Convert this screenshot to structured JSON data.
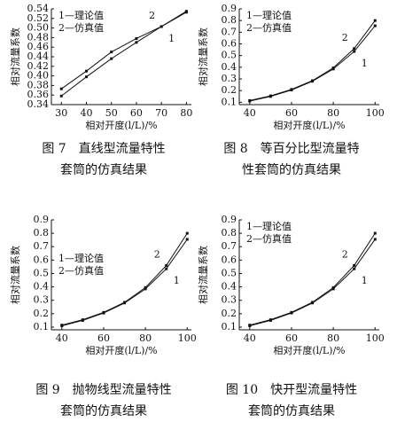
{
  "chart_data": [
    {
      "type": "line",
      "caption": [
        "图 7　直线型流量特性",
        "套筒的仿真结果"
      ],
      "xlabel": "相对开度(l/L)/%",
      "ylabel": "相对流量系数",
      "x": [
        30,
        40,
        50,
        60,
        70,
        80
      ],
      "xlim": [
        26,
        82
      ],
      "xticks": [
        30,
        40,
        50,
        60,
        70,
        80
      ],
      "ylim": [
        0.34,
        0.54
      ],
      "yticks": [
        0.34,
        0.36,
        0.38,
        {
          "value": 0.4,
          "label": "0.40"
        },
        0.42,
        0.44,
        0.46,
        0.48,
        {
          "value": 0.5,
          "label": "0.50"
        },
        0.52,
        0.54
      ],
      "legend": "upper left",
      "series": [
        {
          "name": "1—理论值",
          "label": "1",
          "color": "#111111",
          "values": [
            0.358,
            0.398,
            0.436,
            0.47,
            0.503,
            0.535
          ]
        },
        {
          "name": "2—仿真值",
          "label": "2",
          "color": "#111111",
          "values": [
            0.373,
            0.41,
            0.45,
            0.478,
            0.503,
            0.533
          ]
        }
      ]
    },
    {
      "type": "line",
      "caption": [
        "图 8　等百分比型流量特",
        "性套筒的仿真结果"
      ],
      "xlabel": "相对开度(l/L)/%",
      "ylabel": "相对流量系数",
      "x": [
        40,
        50,
        60,
        70,
        80,
        90,
        100
      ],
      "xlim": [
        35,
        102
      ],
      "xticks": [
        40,
        60,
        80,
        100
      ],
      "ylim": [
        0.08,
        0.9
      ],
      "yticks": [
        0.1,
        0.2,
        0.3,
        0.4,
        0.5,
        0.6,
        0.7,
        0.8,
        0.9
      ],
      "legend": "upper left",
      "series": [
        {
          "name": "1—理论值",
          "label": "1",
          "color": "#111111",
          "values": [
            0.11,
            0.15,
            0.205,
            0.28,
            0.385,
            0.535,
            0.755
          ]
        },
        {
          "name": "2—仿真值",
          "label": "2",
          "color": "#111111",
          "values": [
            0.115,
            0.155,
            0.21,
            0.285,
            0.395,
            0.56,
            0.8
          ]
        }
      ]
    },
    {
      "type": "line",
      "caption": [
        "图 9　抛物线型流量特性",
        "套筒的仿真结果"
      ],
      "xlabel": "相对开度(l/L)/%",
      "ylabel": "相对流量系数",
      "x": [
        40,
        50,
        60,
        70,
        80,
        90,
        100
      ],
      "xlim": [
        35,
        102
      ],
      "xticks": [
        40,
        60,
        80,
        100
      ],
      "ylim": [
        0.08,
        0.9
      ],
      "yticks": [
        0.1,
        0.2,
        0.3,
        0.4,
        0.5,
        0.6,
        0.7,
        0.8,
        0.9
      ],
      "legend": "center left",
      "series": [
        {
          "name": "1—理论值",
          "label": "1",
          "color": "#111111",
          "values": [
            0.11,
            0.15,
            0.205,
            0.28,
            0.385,
            0.535,
            0.755
          ]
        },
        {
          "name": "2—仿真值",
          "label": "2",
          "color": "#111111",
          "values": [
            0.115,
            0.155,
            0.21,
            0.285,
            0.395,
            0.56,
            0.8
          ]
        }
      ]
    },
    {
      "type": "line",
      "caption": [
        "图 10　快开型流量特性",
        "套筒的仿真结果"
      ],
      "xlabel": "相对开度(l/L)/%",
      "ylabel": "相对流量系数",
      "x": [
        40,
        50,
        60,
        70,
        80,
        90,
        100
      ],
      "xlim": [
        35,
        102
      ],
      "xticks": [
        40,
        60,
        80,
        100
      ],
      "ylim": [
        0.08,
        0.9
      ],
      "yticks": [
        0.1,
        0.2,
        0.3,
        0.4,
        0.5,
        0.6,
        0.7,
        0.8,
        0.9
      ],
      "legend": "upper left",
      "series": [
        {
          "name": "1—理论值",
          "label": "1",
          "color": "#111111",
          "values": [
            0.11,
            0.15,
            0.205,
            0.28,
            0.385,
            0.535,
            0.755
          ]
        },
        {
          "name": "2—仿真值",
          "label": "2",
          "color": "#111111",
          "values": [
            0.115,
            0.155,
            0.21,
            0.285,
            0.395,
            0.56,
            0.8
          ]
        }
      ]
    }
  ]
}
